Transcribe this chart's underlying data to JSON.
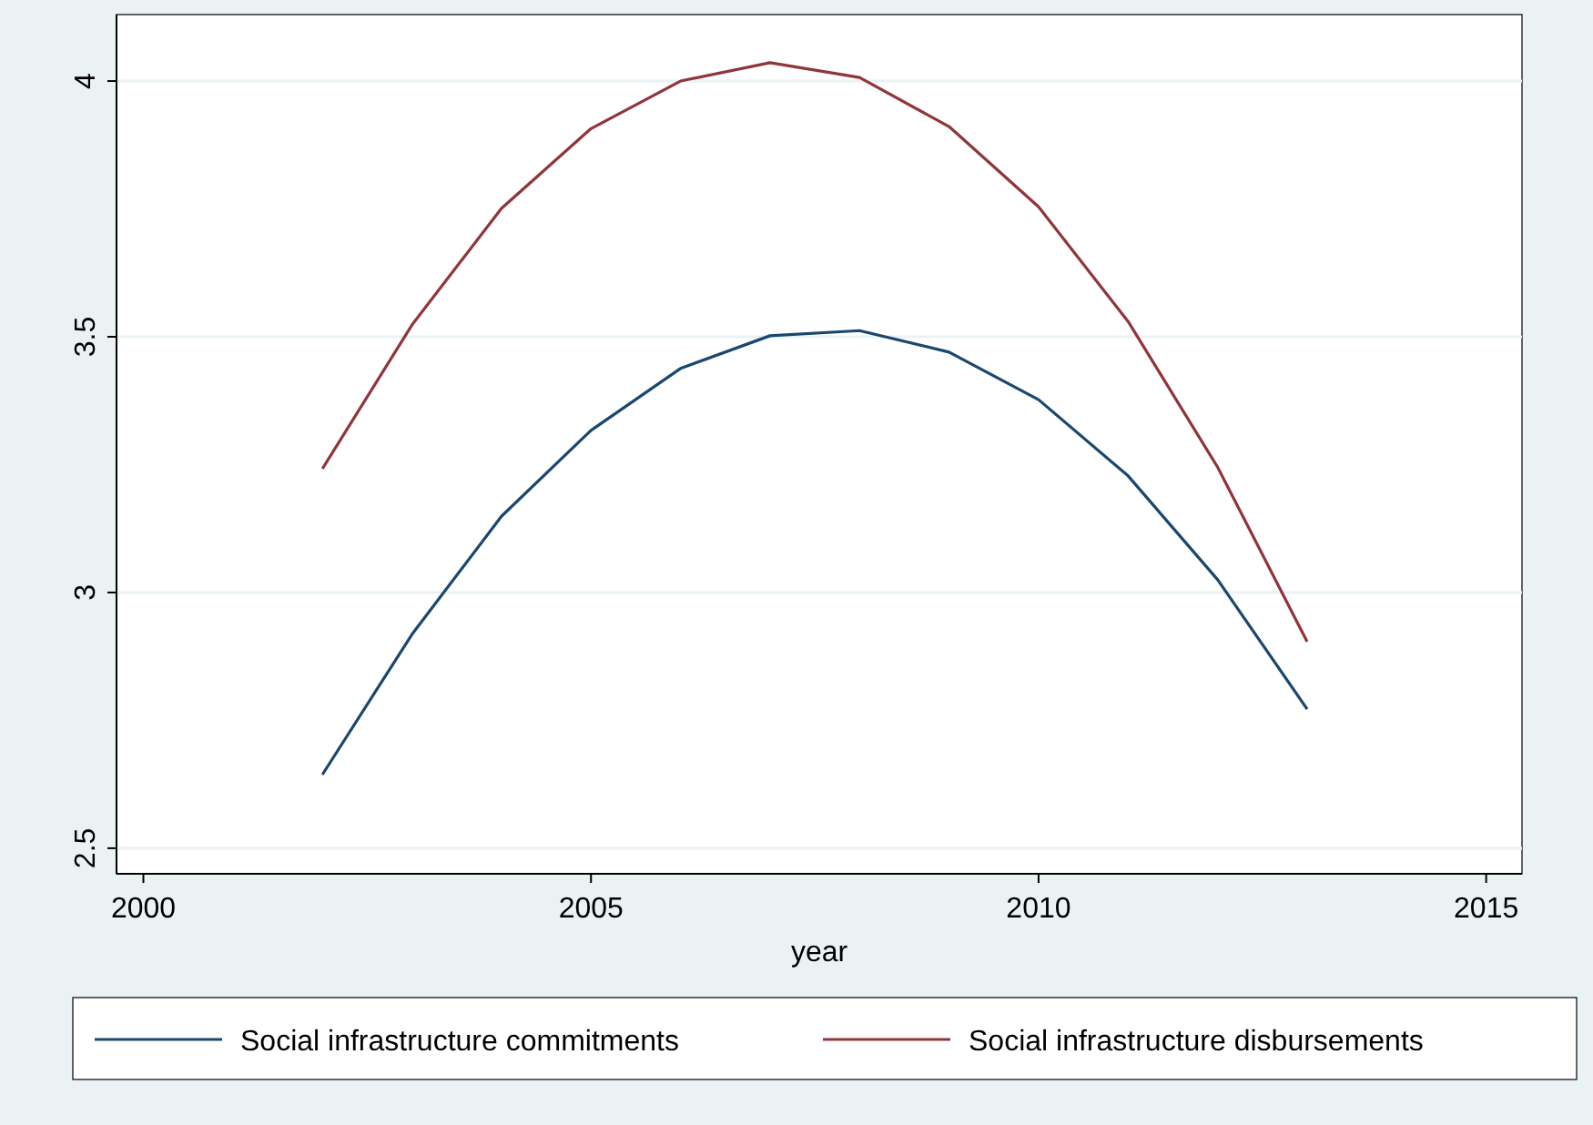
{
  "chart_data": {
    "type": "line",
    "xlabel": "year",
    "x": [
      2002,
      2003,
      2004,
      2005,
      2006,
      2007,
      2008,
      2009,
      2010,
      2011,
      2012,
      2013
    ],
    "xlim": [
      1999.7,
      2015.4
    ],
    "xticks": [
      2000,
      2005,
      2010,
      2015
    ],
    "ylim": [
      2.45,
      4.13
    ],
    "yticks": [
      2.5,
      3,
      3.5,
      4
    ],
    "grid": "y",
    "legend": "bottom",
    "marker": "none",
    "line_style": "solid",
    "series": [
      {
        "name": "Social infrastructure commitments",
        "color": "#1a476f",
        "values": [
          2.644,
          2.918,
          3.149,
          3.317,
          3.438,
          3.502,
          3.512,
          3.47,
          3.377,
          3.228,
          3.025,
          2.772
        ]
      },
      {
        "name": "Social infrastructure disbursements",
        "color": "#90353b",
        "values": [
          3.242,
          3.523,
          3.751,
          3.907,
          4.0,
          4.036,
          4.007,
          3.911,
          3.754,
          3.53,
          3.245,
          2.904
        ]
      }
    ]
  }
}
